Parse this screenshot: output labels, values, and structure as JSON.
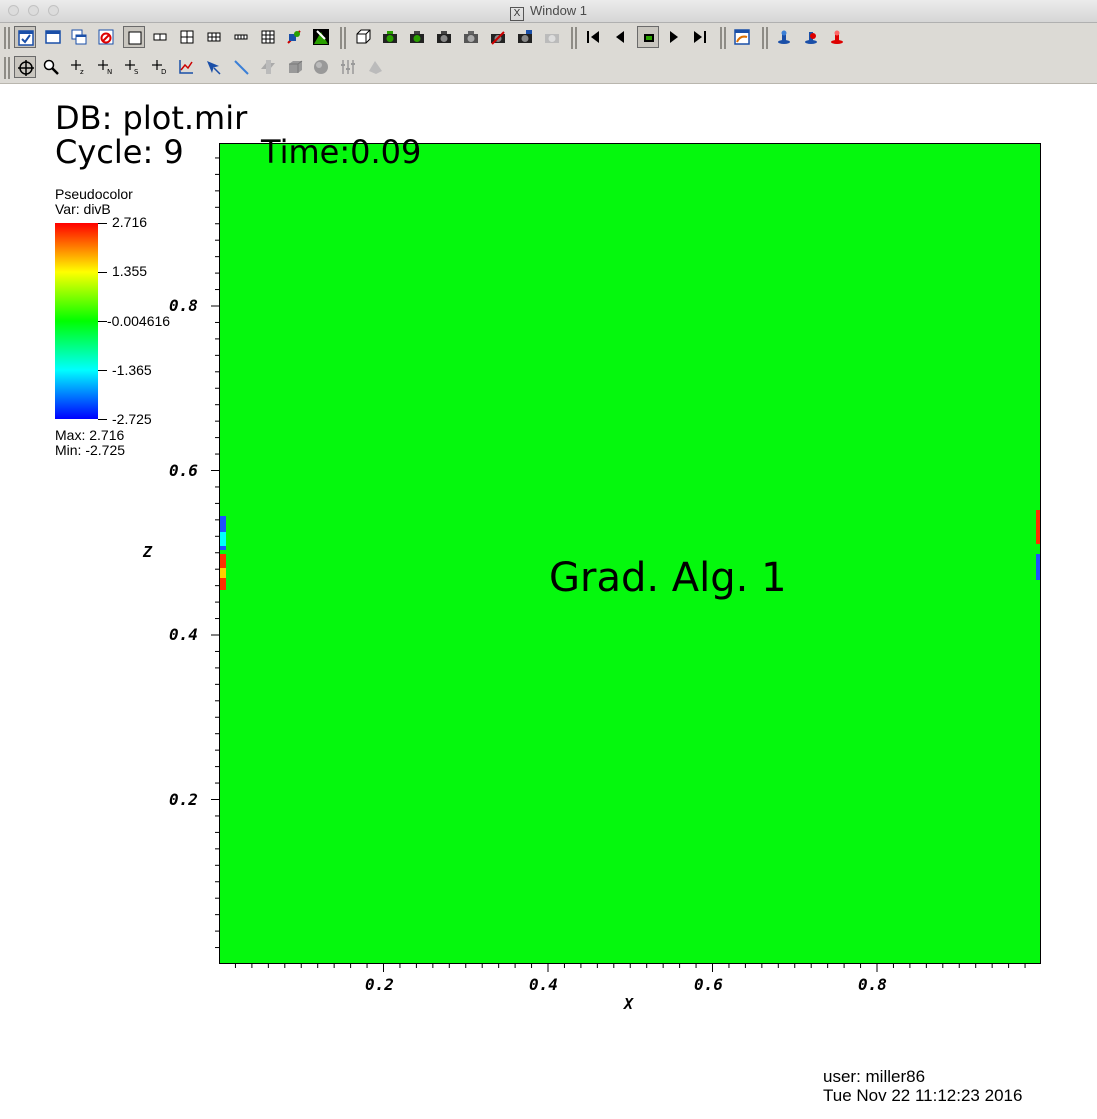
{
  "window": {
    "title": "Window 1",
    "app_logo": "X"
  },
  "toolbar1": {
    "buttons": [
      "active-window-icon",
      "new-window-icon",
      "copy-window-icon",
      "clear-window-icon",
      "layout-1x1-icon",
      "layout-2x1-icon",
      "layout-2x2-icon",
      "layout-3x2-icon",
      "layout-4x1-icon",
      "layout-3x3-icon",
      "lock-view-icon",
      "toggle-spin-icon",
      "camera-icon",
      "camera-icon",
      "camera-icon",
      "camera-icon",
      "camera-icon",
      "camera-icon",
      "camera-icon",
      "skip-back-icon",
      "step-back-icon",
      "stop-icon",
      "play-icon",
      "step-forward-icon",
      "save-image-icon",
      "engine-icon",
      "engine-icon",
      "engine-icon"
    ]
  },
  "toolbar2": {
    "buttons": [
      "navigate-icon",
      "zoom-icon",
      "zone-pick-icon",
      "node-pick-icon",
      "spreadsheet-pick-icon",
      "domain-pick-icon",
      "lineout-icon",
      "point-tool-icon",
      "line-tool-icon",
      "plane-tool-icon",
      "box-tool-icon",
      "sphere-tool-icon",
      "axis-restriction-icon",
      "extents-tool-icon"
    ]
  },
  "plot": {
    "db_line": "DB: plot.mir",
    "cycle_line": "Cycle: 9",
    "time_line": "Time:0.09",
    "annotation": "Grad. Alg. 1",
    "legend": {
      "type": "Pseudocolor",
      "var": "Var: divB",
      "labels": [
        "2.716",
        "1.355",
        "-0.004616",
        "-1.365",
        "-2.725"
      ],
      "max": "Max:  2.716",
      "min": "Min: -2.725",
      "colors": [
        "#ff0000",
        "#ffff00",
        "#00ff00",
        "#00ffff",
        "#0000ff"
      ]
    },
    "x_axis": {
      "title": "X",
      "ticks": [
        "0.2",
        "0.4",
        "0.6",
        "0.8"
      ]
    },
    "y_axis": {
      "title": "Z",
      "ticks": [
        "0.2",
        "0.4",
        "0.6",
        "0.8"
      ]
    },
    "field_color": "#05f80d"
  },
  "footer": {
    "user": "user: miller86",
    "date": "Tue Nov 22 11:12:23 2016"
  }
}
